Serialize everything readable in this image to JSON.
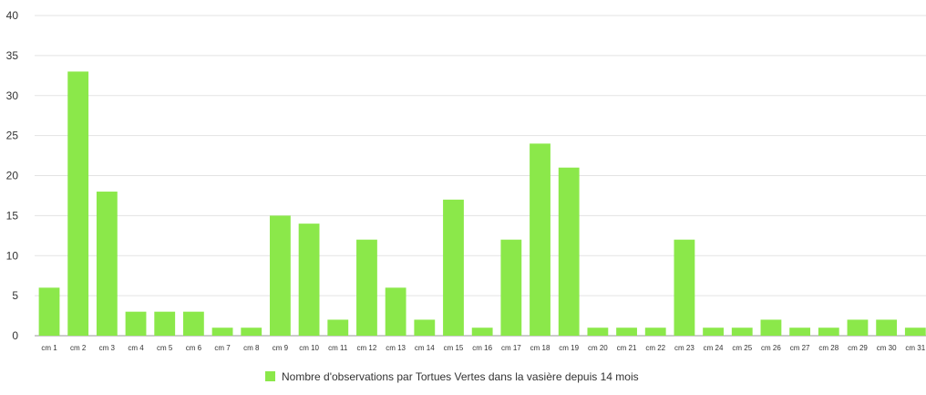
{
  "chart_data": {
    "type": "bar",
    "categories": [
      "cm 1",
      "cm 2",
      "cm 3",
      "cm 4",
      "cm 5",
      "cm 6",
      "cm 7",
      "cm 8",
      "cm 9",
      "cm 10",
      "cm 11",
      "cm 12",
      "cm 13",
      "cm 14",
      "cm 15",
      "cm 16",
      "cm 17",
      "cm 18",
      "cm 19",
      "cm 20",
      "cm 21",
      "cm 22",
      "cm 23",
      "cm 24",
      "cm 25",
      "cm 26",
      "cm 27",
      "cm 28",
      "cm 29",
      "cm 30",
      "cm 31"
    ],
    "series": [
      {
        "name": "Nombre d'observations par Tortues Vertes dans la vasière depuis  14 mois",
        "color": "#8be84a",
        "values": [
          6,
          33,
          18,
          3,
          3,
          3,
          1,
          1,
          15,
          14,
          2,
          12,
          6,
          2,
          17,
          1,
          12,
          24,
          21,
          1,
          1,
          1,
          12,
          1,
          1,
          2,
          1,
          1,
          2,
          2,
          1
        ]
      }
    ],
    "ylim": [
      0,
      40
    ],
    "yticks": [
      "0",
      "5",
      "10",
      "15",
      "20",
      "25",
      "30",
      "35",
      "40"
    ],
    "grid": true,
    "legend_position": "bottom"
  }
}
